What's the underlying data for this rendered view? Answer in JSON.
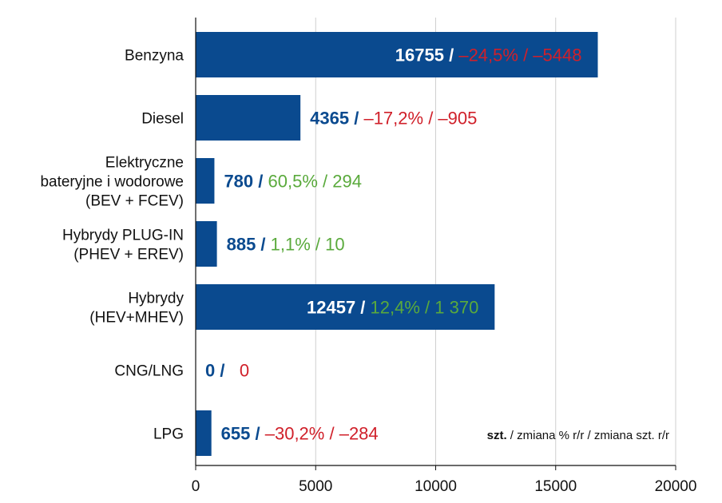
{
  "chart_data": {
    "type": "bar",
    "orientation": "horizontal",
    "categories": [
      "Benzyna",
      "Diesel",
      "Elektryczne bateryjne i wodorowe (BEV + FCEV)",
      "Hybrydy PLUG-IN (PHEV + EREV)",
      "Hybrydy (HEV+MHEV)",
      "CNG/LNG",
      "LPG"
    ],
    "category_lines": [
      [
        "Benzyna"
      ],
      [
        "Diesel"
      ],
      [
        "Elektryczne",
        "bateryjne i wodorowe",
        "(BEV + FCEV)"
      ],
      [
        "Hybrydy PLUG-IN",
        "(PHEV + EREV)"
      ],
      [
        "Hybrydy",
        "(HEV+MHEV)"
      ],
      [
        "CNG/LNG"
      ],
      [
        "LPG"
      ]
    ],
    "values": [
      16755,
      4365,
      780,
      885,
      12457,
      0,
      655
    ],
    "value_labels": [
      "16755",
      "4365",
      "780",
      "885",
      "12457",
      "0",
      "655"
    ],
    "change_pct_labels": [
      "–24,5%",
      "–17,2%",
      "60,5%",
      "1,1%",
      "12,4%",
      "",
      ""
    ],
    "change_units_labels": [
      "–5448",
      "–905",
      "294",
      "10",
      "1 370",
      "0",
      "–284"
    ],
    "change_pct_full": [
      "–24,5%",
      "–17,2%",
      "60,5%",
      "1,1%",
      "12,4%",
      "",
      "–30,2%"
    ],
    "change_direction": [
      "down",
      "down",
      "up",
      "up",
      "up",
      "down",
      "down"
    ],
    "xlim": [
      0,
      20000
    ],
    "xticks": [
      "0",
      "5000",
      "10000",
      "15000",
      "20000"
    ],
    "grid": true,
    "unit_note": {
      "bold": "szt.",
      "rest": " / zmiana % r/r / zmiana szt. r/r"
    },
    "colors": {
      "bar": "#0a4a8f",
      "value_on_bar": "#ffffff",
      "value_off_bar": "#0a4a8f",
      "negative": "#d0202a",
      "positive": "#5aaa3c",
      "grid": "#cfcfcf",
      "axis": "#111111"
    }
  }
}
